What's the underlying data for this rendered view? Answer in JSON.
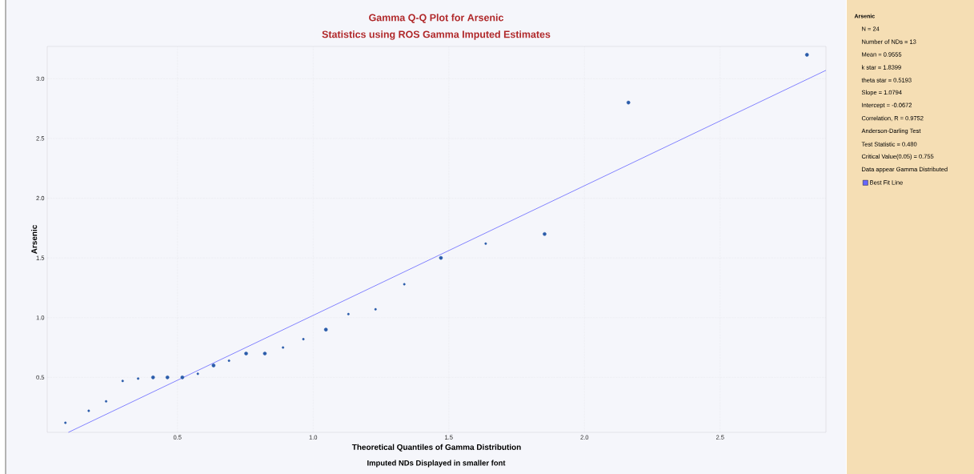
{
  "chart_data": {
    "type": "scatter",
    "title": "Gamma Q-Q Plot for Arsenic",
    "subtitle": "Statistics using ROS Gamma Imputed Estimates",
    "xlabel": "Theoretical Quantiles of Gamma Distribution",
    "ylabel": "Arsenic",
    "legend_title": "Arsenic",
    "annotations": [
      "Imputed NDs Displayed in smaller font",
      "N = 24",
      "Number of NDs = 13",
      "Mean = 0.9555",
      "k star = 1.8399",
      "theta star = 0.5193",
      "Slope = 1.0794",
      "Intercept = -0.0672",
      "Correlation, R = 0.9752",
      "Anderson-Darling Test",
      "Test Statistic = 0.480",
      "Critical Value(0.05) = 0.755",
      "Data appear Gamma Distributed"
    ],
    "xlim": [
      0.02,
      2.89
    ],
    "ylim": [
      0.04,
      3.27
    ],
    "xticks": [
      0.5,
      {
        "value": 1,
        "label": "1.0"
      },
      1.5,
      {
        "value": 2,
        "label": "2.0"
      },
      2.5
    ],
    "yticks": [
      0.5,
      {
        "value": 1,
        "label": "1.0"
      },
      1.5,
      {
        "value": 2,
        "label": "2.0"
      },
      2.5,
      {
        "value": 3,
        "label": "3.0"
      }
    ],
    "grid": true,
    "legend": "right",
    "series": [
      {
        "color": "#2a5caa",
        "x": [
          0.41,
          0.463,
          0.518,
          0.633,
          0.753,
          0.822,
          1.047,
          1.471,
          1.853,
          2.162,
          2.82
        ],
        "values": [
          0.5,
          0.5,
          0.5,
          0.6,
          0.7,
          0.7,
          0.9,
          1.5,
          1.7,
          2.8,
          3.2
        ]
      },
      {
        "color": "#2a5caa",
        "x": [
          0.087,
          0.173,
          0.237,
          0.298,
          0.355,
          0.575,
          0.69,
          0.889,
          0.964,
          1.13,
          1.23,
          1.336,
          1.636
        ],
        "values": [
          0.12,
          0.22,
          0.3,
          0.47,
          0.49,
          0.53,
          0.64,
          0.75,
          0.82,
          1.03,
          1.07,
          1.28,
          1.62
        ]
      },
      {
        "type": "line",
        "name": "Best Fit Line",
        "color": "#6666ff",
        "x": [
          0.098,
          2.89
        ],
        "values": [
          0.04,
          3.07
        ]
      }
    ]
  }
}
